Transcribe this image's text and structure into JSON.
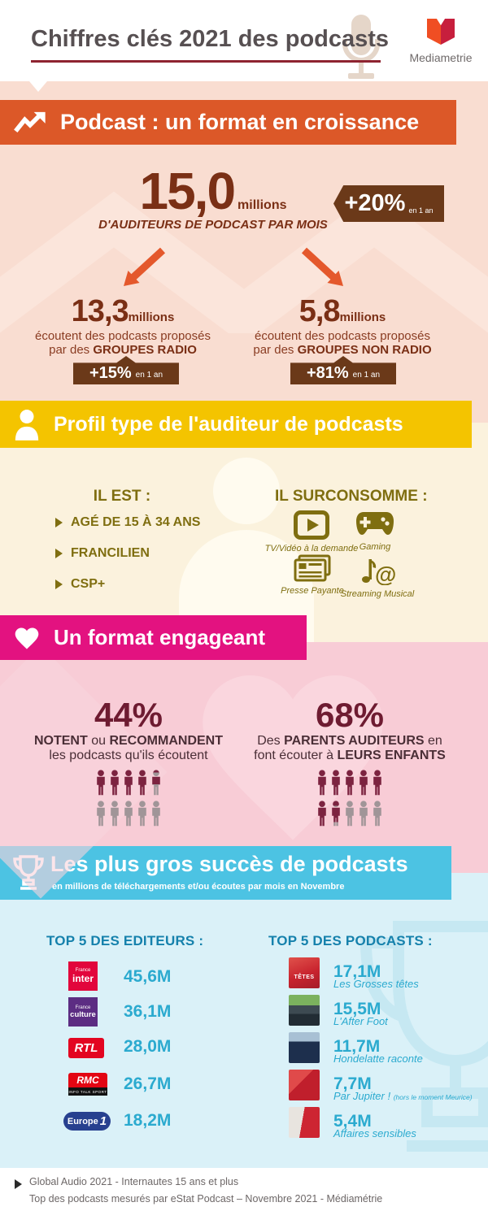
{
  "header": {
    "title": "Chiffres clés 2021 des podcasts",
    "brand": "Mediametrie"
  },
  "growth": {
    "title": "Podcast : un format en croissance",
    "main": {
      "value": "15,0",
      "unit": "millions",
      "label": "D'AUDITEURS DE PODCAST PAR MOIS",
      "delta": "+20%",
      "delta_suffix": "en 1 an"
    },
    "radio": {
      "value": "13,3",
      "unit": "millions",
      "line1": "écoutent des podcasts proposés",
      "line2_prefix": "par des",
      "line2_bold": "GROUPES RADIO",
      "delta": "+15%",
      "delta_suffix": "en 1 an"
    },
    "nonradio": {
      "value": "5,8",
      "unit": "millions",
      "line1": "écoutent des podcasts proposés",
      "line2_prefix": "par des",
      "line2_bold": "GROUPES NON RADIO",
      "delta": "+81%",
      "delta_suffix": "en 1 an"
    }
  },
  "profile": {
    "title": "Profil type de l'auditeur de podcasts",
    "il_est": {
      "heading": "IL EST :",
      "items": [
        "AGÉ DE 15 À 34 ANS",
        "FRANCILIEN",
        "CSP+"
      ]
    },
    "surconsomme": {
      "heading": "IL SURCONSOMME :",
      "items": [
        {
          "icon": "video-play-icon",
          "label": "TV/Vidéo à la demande"
        },
        {
          "icon": "gamepad-icon",
          "label": "Gaming"
        },
        {
          "icon": "newspaper-icon",
          "label": "Presse Payante"
        },
        {
          "icon": "music-at-icon",
          "label": "Streaming Musical"
        }
      ]
    }
  },
  "engagement": {
    "title": "Un format engageant",
    "left": {
      "value": "44%",
      "percent": 44,
      "line1_bold1": "NOTENT",
      "line1_mid": " ou ",
      "line1_bold2": "RECOMMANDENT",
      "line2": "les podcasts qu'ils écoutent"
    },
    "right": {
      "value": "68%",
      "percent": 68,
      "line1_pre": "Des ",
      "line1_bold": "PARENTS AUDITEURS",
      "line1_post": " en",
      "line2_pre": "font écouter à ",
      "line2_bold": "LEURS ENFANTS"
    }
  },
  "top": {
    "title": "Les plus gros succès de podcasts",
    "subtitle": "en millions de téléchargements et/ou écoutes par mois en Novembre",
    "editors_heading": "TOP 5 DES EDITEURS :",
    "podcasts_heading": "TOP 5 DES PODCASTS :",
    "editors": [
      {
        "name": "France Inter",
        "logo_small": "France",
        "logo_text": "inter",
        "value": "45,6M"
      },
      {
        "name": "France Culture",
        "logo_small": "France",
        "logo_text": "culture",
        "value": "36,1M"
      },
      {
        "name": "RTL",
        "logo_text": "RTL",
        "value": "28,0M"
      },
      {
        "name": "RMC",
        "logo_text": "RMC",
        "logo_sub": "INFO TALK SPORT",
        "value": "26,7M"
      },
      {
        "name": "Europe 1",
        "logo_text": "Europe",
        "logo_suffix": "1",
        "value": "18,2M"
      }
    ],
    "podcasts": [
      {
        "value": "17,1M",
        "name": "Les Grosses têtes",
        "cover_text": "TÊTES"
      },
      {
        "value": "15,5M",
        "name": "L'After Foot"
      },
      {
        "value": "11,7M",
        "name": "Hondelatte raconte"
      },
      {
        "value": "7,7M",
        "name": "Par Jupiter !",
        "note": "(hors le moment Meurice)"
      },
      {
        "value": "5,4M",
        "name": "Affaires sensibles"
      }
    ]
  },
  "footer": {
    "line1": "Global Audio 2021 - Internautes 15 ans et plus",
    "line2": "Top des podcasts mesurés par eStat Podcast –  Novembre 2021 - Médiamétrie"
  },
  "colors": {
    "orange_banner": "#dc5828",
    "peach_bg": "#f9ddd1",
    "dark_brown_text": "#7a2f15",
    "badge_brown": "#6b3919",
    "arrow_orange": "#e4582c",
    "yellow_banner": "#f4c400",
    "cream_bg": "#fbf2dd",
    "olive_text": "#7f6e10",
    "magenta_banner": "#e31280",
    "pink_bg": "#f8ccd6",
    "maroon_text": "#6e1b31",
    "person_dark": "#7c2340",
    "person_gray": "#a09598",
    "cyan_banner": "#4cc3e3",
    "lightcyan_bg": "#daf1f8",
    "heading_blue": "#1581ac",
    "value_cyan": "#2baacf",
    "title_gray": "#575052",
    "underline_red": "#8e2330"
  }
}
